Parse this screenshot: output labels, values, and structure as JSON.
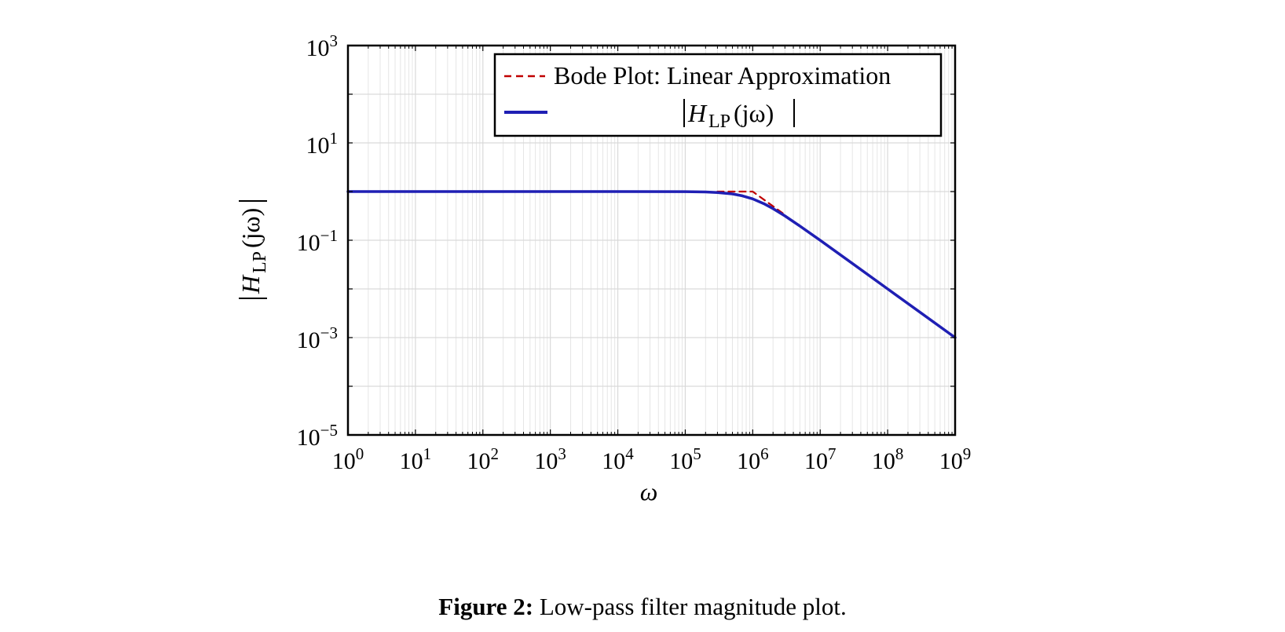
{
  "chart_data": {
    "type": "line",
    "xscale": "log",
    "yscale": "log",
    "xlim": [
      1,
      1000000000
    ],
    "ylim": [
      1e-05,
      1000
    ],
    "grid": true,
    "legend_position": "top-right",
    "xlabel": "ω",
    "ylabel": "|H_LP(jω)|",
    "xticks": [
      {
        "value": 1,
        "base": "10",
        "exp": "0"
      },
      {
        "value": 10,
        "base": "10",
        "exp": "1"
      },
      {
        "value": 100,
        "base": "10",
        "exp": "2"
      },
      {
        "value": 1000,
        "base": "10",
        "exp": "3"
      },
      {
        "value": 10000,
        "base": "10",
        "exp": "4"
      },
      {
        "value": 100000,
        "base": "10",
        "exp": "5"
      },
      {
        "value": 1000000,
        "base": "10",
        "exp": "6"
      },
      {
        "value": 10000000,
        "base": "10",
        "exp": "7"
      },
      {
        "value": 100000000,
        "base": "10",
        "exp": "8"
      },
      {
        "value": 1000000000,
        "base": "10",
        "exp": "9"
      }
    ],
    "yticks": [
      {
        "value": 1e-05,
        "base": "10",
        "exp": "−5"
      },
      {
        "value": 0.001,
        "base": "10",
        "exp": "−3"
      },
      {
        "value": 0.1,
        "base": "10",
        "exp": "−1"
      },
      {
        "value": 10,
        "base": "10",
        "exp": "1"
      },
      {
        "value": 1000,
        "base": "10",
        "exp": "3"
      }
    ],
    "series": [
      {
        "name": "Bode Plot: Linear Approximation",
        "color": "#c00000",
        "style": "dashed",
        "x": [
          300000,
          1000000,
          3000000
        ],
        "y": [
          1,
          1,
          0.333
        ]
      },
      {
        "name": "|H_LP(jω)|",
        "color": "#1f1fb4",
        "style": "solid",
        "x": [
          1,
          10,
          100,
          1000,
          10000,
          100000,
          200000,
          300000,
          500000,
          700000,
          1000000,
          1500000,
          2000000,
          3000000,
          5000000,
          10000000,
          30000000,
          100000000,
          300000000,
          1000000000
        ],
        "y": [
          1,
          1,
          1,
          1,
          1,
          0.995,
          0.98,
          0.958,
          0.894,
          0.819,
          0.707,
          0.555,
          0.447,
          0.316,
          0.196,
          0.0995,
          0.0333,
          0.01,
          0.00333,
          0.001
        ]
      }
    ]
  },
  "figure": {
    "caption_label": "Figure 2:",
    "caption_text": "Low-pass filter magnitude plot."
  }
}
